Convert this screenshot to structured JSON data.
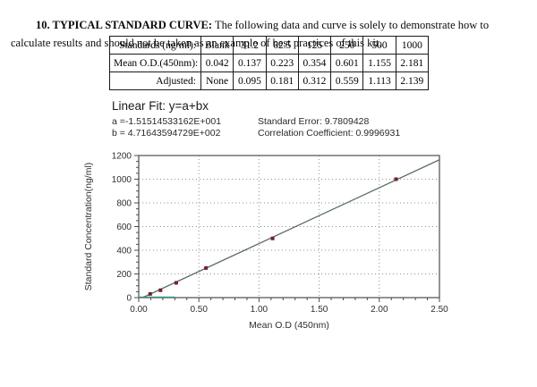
{
  "page": {
    "heading_bold": "10. TYPICAL STANDARD CURVE:",
    "heading_rest": " The following data and curve is solely to demonstrate how to calculate results and should not be taken as an example of best practices of this kit."
  },
  "table": {
    "rows": [
      {
        "label": "Standards (ng/ml):",
        "values": [
          "Blank",
          "31.2",
          "62.5",
          "125",
          "250",
          "500",
          "1000"
        ]
      },
      {
        "label": "Mean O.D.(450nm):",
        "values": [
          "0.042",
          "0.137",
          "0.223",
          "0.354",
          "0.601",
          "1.155",
          "2.181"
        ]
      },
      {
        "label": "Adjusted:",
        "values": [
          "None",
          "0.095",
          "0.181",
          "0.312",
          "0.559",
          "1.113",
          "2.139"
        ]
      }
    ]
  },
  "fit": {
    "title": "Linear Fit: y=a+bx",
    "a_label": "a =-1.51514533162E+001",
    "b_label": "b = 4.71643594729E+002",
    "std_error": "Standard Error: 9.7809428",
    "correlation": "Correlation Coefficient: 0.9996931"
  },
  "chart_data": {
    "type": "scatter",
    "title": "",
    "xlabel": "Mean O.D (450nm)",
    "ylabel": "Standard Concentration(ng/ml)",
    "xlim": [
      0,
      2.5
    ],
    "ylim": [
      0,
      1200
    ],
    "xticks": [
      "0.00",
      "0.50",
      "1.00",
      "1.50",
      "2.00",
      "2.50"
    ],
    "yticks": [
      0,
      200,
      400,
      600,
      800,
      1000,
      1200
    ],
    "grid": true,
    "x": [
      0.095,
      0.181,
      0.312,
      0.559,
      1.113,
      2.139
    ],
    "y": [
      31.2,
      62.5,
      125,
      250,
      500,
      1000
    ],
    "fit": {
      "a": -15.1514533162,
      "b": 471.643594729
    },
    "baseline_segment": {
      "x0": 0.0,
      "x1": 0.3,
      "y": 0,
      "color": "#2e9e8a"
    },
    "point_color": "#731f2b",
    "line_color": "#5c6e63"
  }
}
